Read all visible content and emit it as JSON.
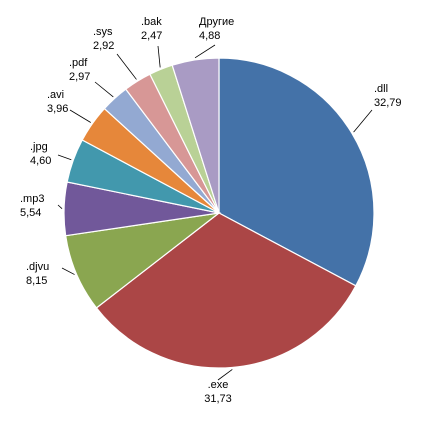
{
  "chart_data": {
    "type": "pie",
    "title": "",
    "start_angle_deg": 0,
    "direction": "clockwise",
    "slices": [
      {
        "label": ".dll",
        "value": 32.79,
        "value_text": "32,79",
        "color": "#4472a8"
      },
      {
        "label": ".exe",
        "value": 31.73,
        "value_text": "31,73",
        "color": "#ab4646"
      },
      {
        "label": ".djvu",
        "value": 8.15,
        "value_text": "8,15",
        "color": "#8aa650"
      },
      {
        "label": ".mp3",
        "value": 5.54,
        "value_text": "5,54",
        "color": "#71589a"
      },
      {
        "label": ".jpg",
        "value": 4.6,
        "value_text": "4,60",
        "color": "#4298ad"
      },
      {
        "label": ".avi",
        "value": 3.96,
        "value_text": "3,96",
        "color": "#e6873a"
      },
      {
        "label": ".pdf",
        "value": 2.97,
        "value_text": "2,97",
        "color": "#93a9d2"
      },
      {
        "label": ".sys",
        "value": 2.92,
        "value_text": "2,92",
        "color": "#d79796"
      },
      {
        "label": ".bak",
        "value": 2.47,
        "value_text": "2,47",
        "color": "#b9d196"
      },
      {
        "label": "Другие",
        "value": 4.88,
        "value_text": "4,88",
        "color": "#a99bc4"
      }
    ],
    "legend": "none",
    "data_labels": "outside, category name and value"
  }
}
